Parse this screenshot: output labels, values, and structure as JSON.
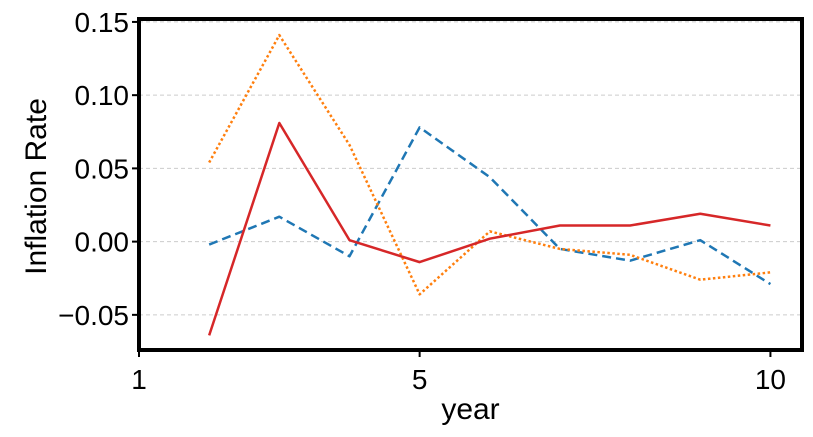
{
  "chart_data": {
    "type": "line",
    "xlabel": "year",
    "ylabel": "Inflation Rate",
    "xlim": [
      1,
      10.45
    ],
    "ylim": [
      -0.074,
      0.152
    ],
    "xticks": [
      1,
      5,
      10
    ],
    "xtick_labels": [
      "1",
      "5",
      "10"
    ],
    "yticks": [
      -0.05,
      0.0,
      0.05,
      0.1,
      0.15
    ],
    "ytick_labels": [
      "−0.05",
      "0.00",
      "0.05",
      "0.10",
      "0.15"
    ],
    "grid": "horizontal dashed",
    "legend": "none",
    "x": [
      2,
      3,
      4,
      5,
      6,
      7,
      8,
      9,
      10
    ],
    "series": [
      {
        "color": "#1f77b4",
        "style": "dashed",
        "values": [
          -0.002,
          0.017,
          -0.01,
          0.078,
          0.044,
          -0.005,
          -0.013,
          0.001,
          -0.029
        ]
      },
      {
        "color": "#ff7f0e",
        "style": "dotted",
        "values": [
          0.054,
          0.141,
          0.066,
          -0.036,
          0.007,
          -0.005,
          -0.009,
          -0.026,
          -0.021
        ]
      },
      {
        "color": "#d62728",
        "style": "solid",
        "values": [
          -0.064,
          0.081,
          0.001,
          -0.014,
          0.002,
          0.011,
          0.011,
          0.019,
          0.011
        ]
      }
    ]
  }
}
